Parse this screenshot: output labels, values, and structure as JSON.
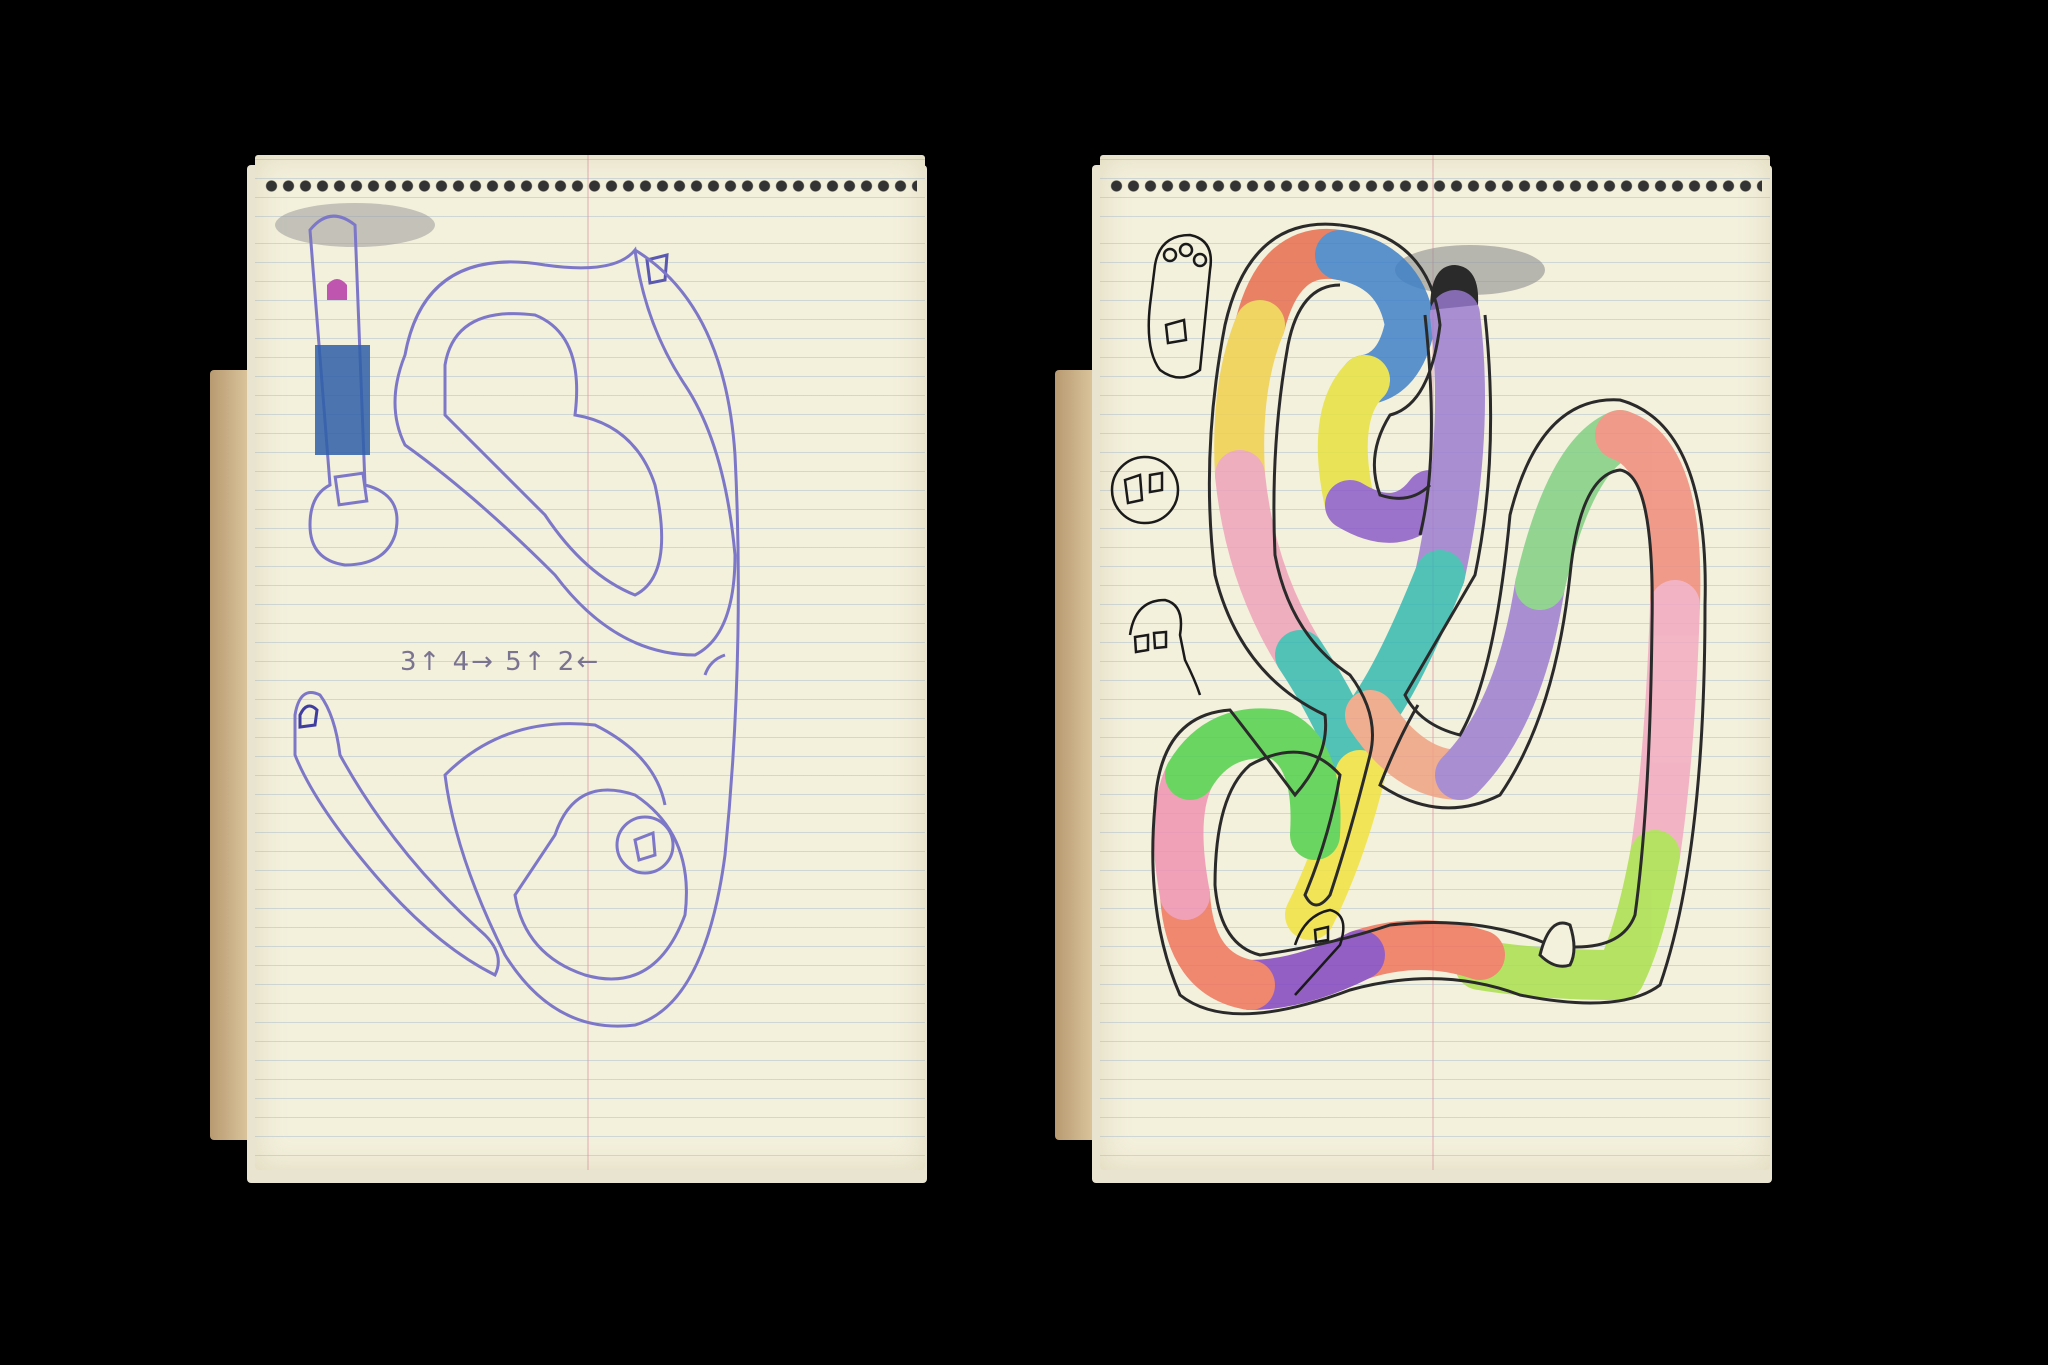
{
  "left_page": {
    "note_text": "3↑ 4→ 5↑ 2←"
  },
  "colors": {
    "background": "#000000",
    "paper": "#f3f0dc",
    "pencil_purple": "#7d77c8",
    "graphite": "#2a2a2a"
  }
}
